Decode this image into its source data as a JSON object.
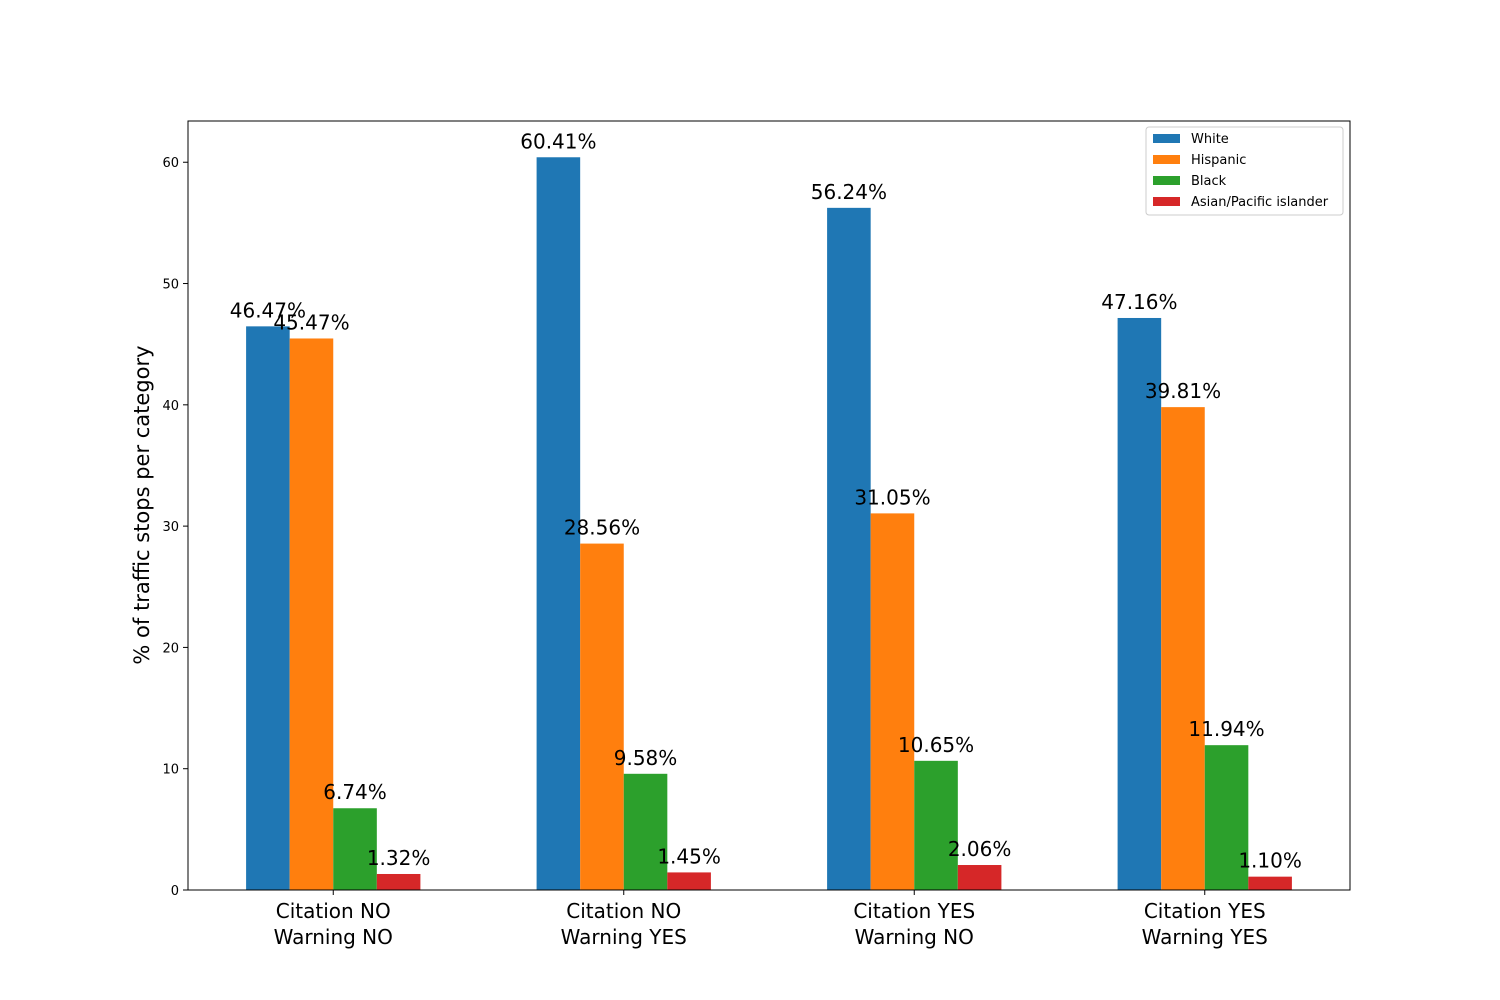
{
  "chart_data": {
    "type": "bar",
    "ylabel": "% of traffic stops per category",
    "xlabel": "",
    "ylim": [
      0,
      63.4
    ],
    "yticks": [
      0,
      10,
      20,
      30,
      40,
      50,
      60
    ],
    "grid": false,
    "legend_position": "top-right",
    "categories": [
      [
        "Citation NO",
        "Warning NO"
      ],
      [
        "Citation NO",
        "Warning YES"
      ],
      [
        "Citation YES",
        "Warning NO"
      ],
      [
        "Citation YES",
        "Warning YES"
      ]
    ],
    "series": [
      {
        "name": "White",
        "color": "#1f77b4",
        "values": [
          46.47,
          60.41,
          56.24,
          47.16
        ],
        "labels": [
          "46.47%",
          "60.41%",
          "56.24%",
          "47.16%"
        ]
      },
      {
        "name": "Hispanic",
        "color": "#ff7f0e",
        "values": [
          45.47,
          28.56,
          31.05,
          39.81
        ],
        "labels": [
          "45.47%",
          "28.56%",
          "31.05%",
          "39.81%"
        ]
      },
      {
        "name": "Black",
        "color": "#2ca02c",
        "values": [
          6.74,
          9.58,
          10.65,
          11.94
        ],
        "labels": [
          "6.74%",
          "9.58%",
          "10.65%",
          "11.94%"
        ]
      },
      {
        "name": "Asian/Pacific islander",
        "color": "#d62728",
        "values": [
          1.32,
          1.45,
          2.06,
          1.1
        ],
        "labels": [
          "1.32%",
          "1.45%",
          "2.06%",
          "1.10%"
        ]
      }
    ]
  }
}
